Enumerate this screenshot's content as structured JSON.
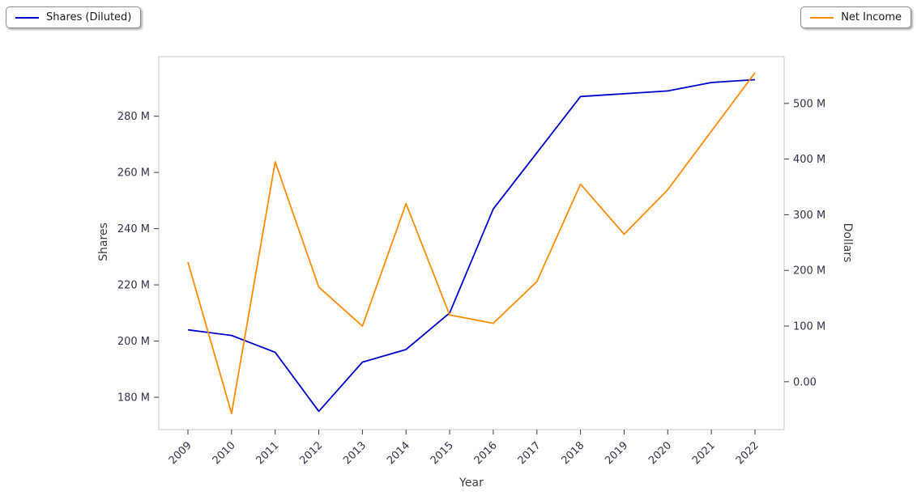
{
  "legend_left": {
    "label": "Shares (Diluted)"
  },
  "legend_right": {
    "label": "Net Income"
  },
  "colors": {
    "shares_line": "#0000cd",
    "net_income_line": "#ff8c00",
    "frame": "#c9c9c9",
    "tick_mark": "#3a3a3a",
    "tick_label": "#32324b",
    "axis_label": "#3a3a3a",
    "background": "#ffffff"
  },
  "chart_data": {
    "type": "line",
    "title": "",
    "xlabel": "Year",
    "ylabel_left": "Shares",
    "ylabel_right": "Dollars",
    "grid": false,
    "legend_position": "outside-top-corners",
    "legend": [
      "Shares (Diluted)",
      "Net Income"
    ],
    "x": [
      2009,
      2010,
      2011,
      2012,
      2013,
      2014,
      2015,
      2016,
      2017,
      2018,
      2019,
      2020,
      2021,
      2022
    ],
    "x_tick_labels": [
      "2009",
      "2010",
      "2011",
      "2012",
      "2013",
      "2014",
      "2015",
      "2016",
      "2017",
      "2018",
      "2019",
      "2020",
      "2021",
      "2022"
    ],
    "series": [
      {
        "id": "shares-diluted",
        "name": "Shares (Diluted)",
        "axis": "left",
        "color": "#0000cd",
        "unit": "millions",
        "values": [
          204,
          202,
          196,
          175,
          192.5,
          197,
          210,
          247,
          267,
          287,
          288,
          289,
          292,
          293
        ]
      },
      {
        "id": "net-income",
        "name": "Net Income",
        "axis": "right",
        "color": "#ff8c00",
        "unit": "millions",
        "values": [
          215,
          -57,
          395,
          170,
          100,
          320,
          120,
          105,
          180,
          355,
          265,
          345,
          450,
          555
        ]
      }
    ],
    "left_axis": {
      "label": "Shares",
      "tick_labels": [
        "180 M",
        "200 M",
        "220 M",
        "240 M",
        "260 M",
        "280 M"
      ],
      "tick_values": [
        180,
        200,
        220,
        240,
        260,
        280
      ],
      "range_millions": [
        168.5,
        301.2
      ]
    },
    "right_axis": {
      "label": "Dollars",
      "tick_labels": [
        "0.00",
        "100 M",
        "200 M",
        "300 M",
        "400 M",
        "500 M"
      ],
      "tick_values": [
        0,
        100,
        200,
        300,
        400,
        500
      ],
      "range_millions": [
        -86,
        584
      ]
    }
  }
}
